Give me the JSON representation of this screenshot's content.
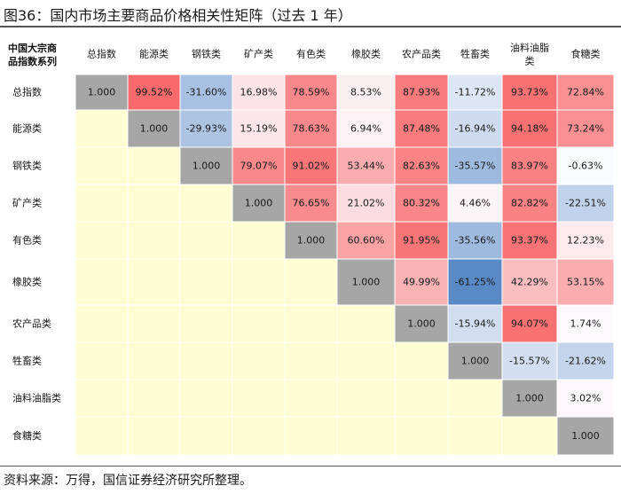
{
  "title": "图36：国内市场主要商品价格相关性矩阵（过去 1 年）",
  "source": "资料来源：万得，国信证券经济研究所整理。",
  "chart_data": {
    "type": "heatmap",
    "title": "图36：国内市场主要商品价格相关性矩阵（过去 1 年）",
    "corner_label": [
      "中国大宗商",
      "品指数系列"
    ],
    "columns": [
      "总指数",
      "能源类",
      "钢铁类",
      "矿产类",
      "有色类",
      "橡胶类",
      "农产品类",
      "牲畜类",
      "油料油脂类",
      "食糖类"
    ],
    "rows": [
      "总指数",
      "能源类",
      "钢铁类",
      "矿产类",
      "有色类",
      "橡胶类",
      "农产品类",
      "牲畜类",
      "油料油脂类",
      "食糖类"
    ],
    "cells": [
      [
        "1.000",
        "99.52%",
        "-31.60%",
        "16.98%",
        "78.59%",
        "8.53%",
        "87.93%",
        "-11.72%",
        "93.73%",
        "72.84%"
      ],
      [
        "",
        "1.000",
        "-29.93%",
        "15.19%",
        "78.63%",
        "6.94%",
        "87.48%",
        "-16.94%",
        "94.18%",
        "73.24%"
      ],
      [
        "",
        "",
        "1.000",
        "79.07%",
        "91.02%",
        "53.44%",
        "82.63%",
        "-35.57%",
        "83.97%",
        "-0.63%"
      ],
      [
        "",
        "",
        "",
        "1.000",
        "76.65%",
        "21.02%",
        "80.32%",
        "4.46%",
        "82.82%",
        "-22.51%"
      ],
      [
        "",
        "",
        "",
        "",
        "1.000",
        "60.60%",
        "91.95%",
        "-35.56%",
        "93.37%",
        "12.23%"
      ],
      [
        "",
        "",
        "",
        "",
        "",
        "1.000",
        "49.99%",
        "-61.25%",
        "42.29%",
        "53.15%"
      ],
      [
        "",
        "",
        "",
        "",
        "",
        "",
        "1.000",
        "-15.94%",
        "94.07%",
        "1.74%"
      ],
      [
        "",
        "",
        "",
        "",
        "",
        "",
        "",
        "1.000",
        "-15.57%",
        "-21.62%"
      ],
      [
        "",
        "",
        "",
        "",
        "",
        "",
        "",
        "",
        "1.000",
        "3.02%"
      ],
      [
        "",
        "",
        "",
        "",
        "",
        "",
        "",
        "",
        "",
        "1.000"
      ]
    ],
    "colors": {
      "diagonal": "#a6a6a6",
      "lower_triangle": "#fefdd3",
      "positive": "#f8696b",
      "neutral": "#fcfcff",
      "negative": "#5a8ac6"
    }
  }
}
